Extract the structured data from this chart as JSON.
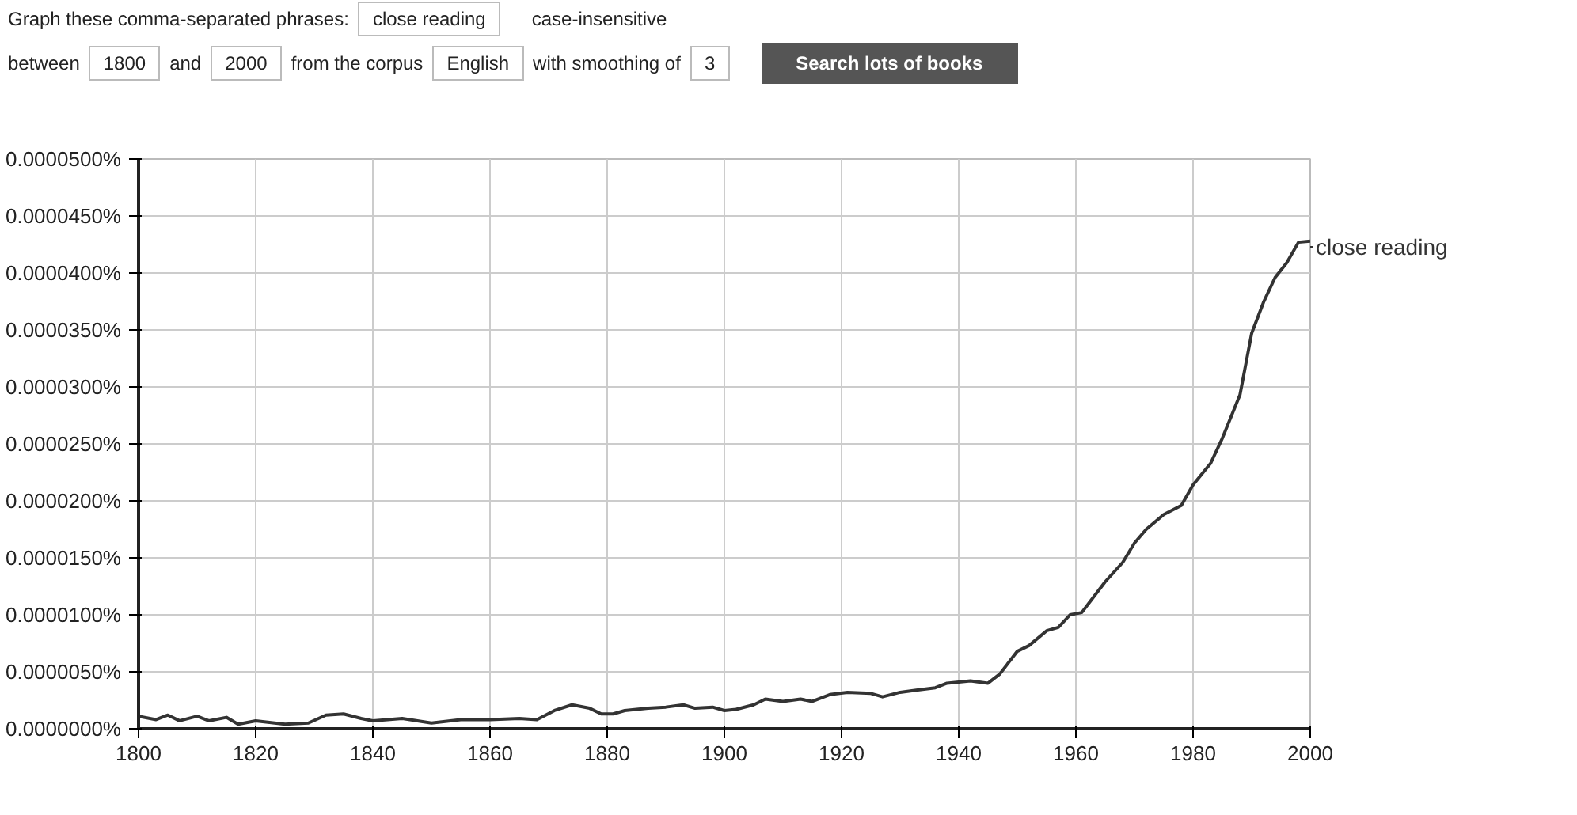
{
  "chart_data": {
    "type": "line",
    "annotations": [
      "Graph these comma-separated phrases:",
      "close reading",
      "case-insensitive",
      "between",
      "1800",
      "and",
      "2000",
      "from the corpus",
      "English",
      "with smoothing of",
      "3",
      "Search lots of books"
    ],
    "x": [
      1800,
      1803,
      1805,
      1807,
      1810,
      1812,
      1815,
      1817,
      1820,
      1825,
      1829,
      1832,
      1835,
      1838,
      1840,
      1845,
      1850,
      1855,
      1860,
      1865,
      1868,
      1871,
      1874,
      1877,
      1879,
      1881,
      1883,
      1887,
      1890,
      1893,
      1895,
      1898,
      1900,
      1902,
      1905,
      1907,
      1910,
      1913,
      1915,
      1918,
      1921,
      1925,
      1927,
      1930,
      1933,
      1936,
      1938,
      1942,
      1945,
      1947,
      1950,
      1952,
      1955,
      1957,
      1959,
      1961,
      1965,
      1968,
      1970,
      1972,
      1975,
      1978,
      1980,
      1983,
      1985,
      1988,
      1990,
      1992,
      1994,
      1996,
      1998,
      2000
    ],
    "series": [
      {
        "name": "close reading",
        "color": "#333333",
        "values": [
          1.1e-06,
          8e-07,
          1.2e-06,
          7e-07,
          1.1e-06,
          7e-07,
          1e-06,
          4e-07,
          7e-07,
          4e-07,
          5e-07,
          1.2e-06,
          1.3e-06,
          9e-07,
          7e-07,
          9e-07,
          5e-07,
          8e-07,
          8e-07,
          9e-07,
          8e-07,
          1.6e-06,
          2.1e-06,
          1.8e-06,
          1.3e-06,
          1.3e-06,
          1.6e-06,
          1.8e-06,
          1.9e-06,
          2.1e-06,
          1.8e-06,
          1.9e-06,
          1.6e-06,
          1.7e-06,
          2.1e-06,
          2.6e-06,
          2.4e-06,
          2.6e-06,
          2.4e-06,
          3e-06,
          3.2e-06,
          3.1e-06,
          2.8e-06,
          3.2e-06,
          3.4e-06,
          3.6e-06,
          4e-06,
          4.2e-06,
          4e-06,
          4.8e-06,
          6.8e-06,
          7.3e-06,
          8.6e-06,
          8.9e-06,
          1e-05,
          1.02e-05,
          1.29e-05,
          1.46e-05,
          1.63e-05,
          1.75e-05,
          1.88e-05,
          1.96e-05,
          2.14e-05,
          2.33e-05,
          2.55e-05,
          2.93e-05,
          3.47e-05,
          3.74e-05,
          3.96e-05,
          4.09e-05,
          4.27e-05,
          4.28e-05
        ]
      }
    ],
    "xlim": [
      1800,
      2000
    ],
    "xticks": [
      1800,
      1820,
      1840,
      1860,
      1880,
      1900,
      1920,
      1940,
      1960,
      1980,
      2000
    ],
    "ylim": [
      0,
      5e-05
    ],
    "yticks": [
      {
        "value": 0,
        "label": "0.0000000%"
      },
      {
        "value": 5e-06,
        "label": "0.0000050%"
      },
      {
        "value": 1e-05,
        "label": "0.0000100%"
      },
      {
        "value": 1.5e-05,
        "label": "0.0000150%"
      },
      {
        "value": 2e-05,
        "label": "0.0000200%"
      },
      {
        "value": 2.5e-05,
        "label": "0.0000250%"
      },
      {
        "value": 3e-05,
        "label": "0.0000300%"
      },
      {
        "value": 3.5e-05,
        "label": "0.0000350%"
      },
      {
        "value": 4e-05,
        "label": "0.0000400%"
      },
      {
        "value": 4.5e-05,
        "label": "0.0000450%"
      },
      {
        "value": 5e-05,
        "label": "0.0000500%"
      }
    ],
    "grid": true,
    "marker": "none",
    "line_style": "solid",
    "legend": "right"
  }
}
